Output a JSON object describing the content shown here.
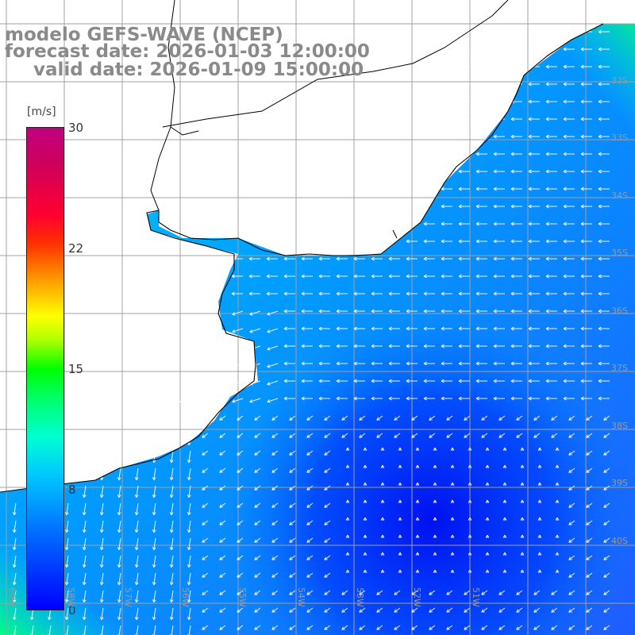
{
  "header": {
    "model": "modelo GEFS-WAVE (NCEP)",
    "forecast_date": "forecast date: 2026-01-03 12:00:00",
    "valid_date": "valid date: 2026-01-09 15:00:00"
  },
  "colorbar": {
    "unit": "[m/s]",
    "ticks": [
      "30",
      "22",
      "15",
      "8",
      "0"
    ],
    "min": 0,
    "max": 30,
    "colors": [
      "#0000ff",
      "#00c8ff",
      "#00ff00",
      "#ffff00",
      "#ff0000",
      "#c00080"
    ]
  },
  "latitude_labels": [
    "32S",
    "33S",
    "34S",
    "35S",
    "36S",
    "37S",
    "38S",
    "39S",
    "40S"
  ],
  "longitude_labels": [
    "60W",
    "58W",
    "57W",
    "56W",
    "55W",
    "54W",
    "53W",
    "52W",
    "51W"
  ],
  "map": {
    "land_color": "#ffffff",
    "grid_color": "#a0a0a0",
    "coastline_color": "#000000",
    "vector_color": "#ffffff",
    "region": "Rio de la Plata / South-West Atlantic"
  }
}
